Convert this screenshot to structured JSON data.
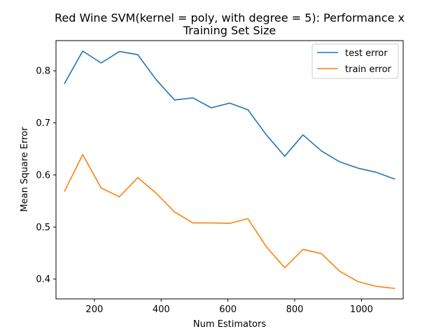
{
  "chart_data": {
    "type": "line",
    "title_line1": "Red Wine SVM(kernel = poly, with degree = 5): Performance x",
    "title_line2": "Training Set Size",
    "xlabel": "Num Estimators",
    "ylabel": "Mean Square Error",
    "xlim": [
      85,
      1125
    ],
    "ylim": [
      0.362,
      0.858
    ],
    "xticks": [
      200,
      400,
      600,
      800,
      1000
    ],
    "yticks": [
      0.4,
      0.5,
      0.6,
      0.7,
      0.8
    ],
    "xtick_labels": [
      "200",
      "400",
      "600",
      "800",
      "1000"
    ],
    "ytick_labels": [
      "0.4",
      "0.5",
      "0.6",
      "0.7",
      "0.8"
    ],
    "grid": false,
    "legend_position": "top-right",
    "x": [
      110,
      165,
      220,
      275,
      330,
      385,
      440,
      495,
      550,
      605,
      660,
      715,
      770,
      825,
      880,
      935,
      990,
      1045,
      1100
    ],
    "series": [
      {
        "name": "test error",
        "color": "#1f77b4",
        "values": [
          0.775,
          0.838,
          0.815,
          0.837,
          0.831,
          0.783,
          0.744,
          0.748,
          0.729,
          0.738,
          0.725,
          0.677,
          0.636,
          0.677,
          0.646,
          0.625,
          0.613,
          0.605,
          0.592
        ]
      },
      {
        "name": "train error",
        "color": "#ff7f0e",
        "values": [
          0.568,
          0.639,
          0.575,
          0.558,
          0.595,
          0.565,
          0.529,
          0.508,
          0.508,
          0.507,
          0.516,
          0.462,
          0.422,
          0.457,
          0.449,
          0.415,
          0.395,
          0.386,
          0.382
        ]
      }
    ]
  }
}
